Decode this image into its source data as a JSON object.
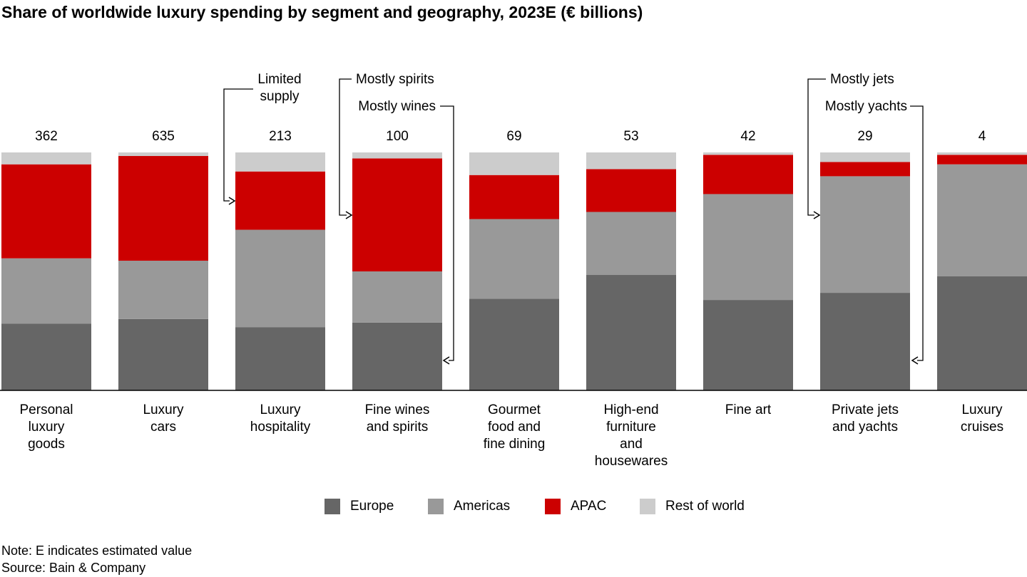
{
  "chart_data": {
    "type": "bar",
    "stacked": true,
    "normalized": true,
    "title": "Share of worldwide luxury spending by segment and geography, 2023E (€ billions)",
    "categories": [
      [
        "Personal",
        "luxury",
        "goods"
      ],
      [
        "Luxury",
        "cars"
      ],
      [
        "Luxury",
        "hospitality"
      ],
      [
        "Fine wines",
        "and spirits"
      ],
      [
        "Gourmet",
        "food and",
        "fine dining"
      ],
      [
        "High-end",
        "furniture",
        "and",
        "housewares"
      ],
      [
        "Fine art"
      ],
      [
        "Private jets",
        "and yachts"
      ],
      [
        "Luxury",
        "cruises"
      ]
    ],
    "totals": [
      "362",
      "635",
      "213",
      "100",
      "69",
      "53",
      "42",
      "29",
      "4"
    ],
    "series": [
      {
        "name": "Europe",
        "color": "#666666",
        "values": [
          0.28,
          0.3,
          0.265,
          0.285,
          0.385,
          0.485,
          0.38,
          0.41,
          0.48
        ]
      },
      {
        "name": "Americas",
        "color": "#999999",
        "values": [
          0.275,
          0.245,
          0.41,
          0.215,
          0.335,
          0.265,
          0.445,
          0.49,
          0.47
        ]
      },
      {
        "name": "APAC",
        "color": "#cc0000",
        "values": [
          0.395,
          0.44,
          0.245,
          0.475,
          0.185,
          0.18,
          0.165,
          0.06,
          0.04
        ]
      },
      {
        "name": "Rest of world",
        "color": "#cccccc",
        "values": [
          0.05,
          0.015,
          0.08,
          0.025,
          0.095,
          0.07,
          0.01,
          0.04,
          0.01
        ]
      }
    ],
    "ylim": [
      0,
      1
    ],
    "grid": false,
    "legend_position": "bottom",
    "annotations": [
      {
        "text": [
          "Limited",
          "supply"
        ],
        "category_index": 2,
        "segment": "APAC"
      },
      {
        "text": [
          "Mostly spirits"
        ],
        "category_index": 3,
        "segment": "APAC"
      },
      {
        "text": [
          "Mostly wines"
        ],
        "category_index": 3,
        "segment": "Europe"
      },
      {
        "text": [
          "Mostly jets"
        ],
        "category_index": 7,
        "segment": "Americas"
      },
      {
        "text": [
          "Mostly yachts"
        ],
        "category_index": 7,
        "segment": "Europe"
      }
    ]
  },
  "footnotes": {
    "note": "Note: E indicates estimated value",
    "source": "Source: Bain & Company"
  }
}
